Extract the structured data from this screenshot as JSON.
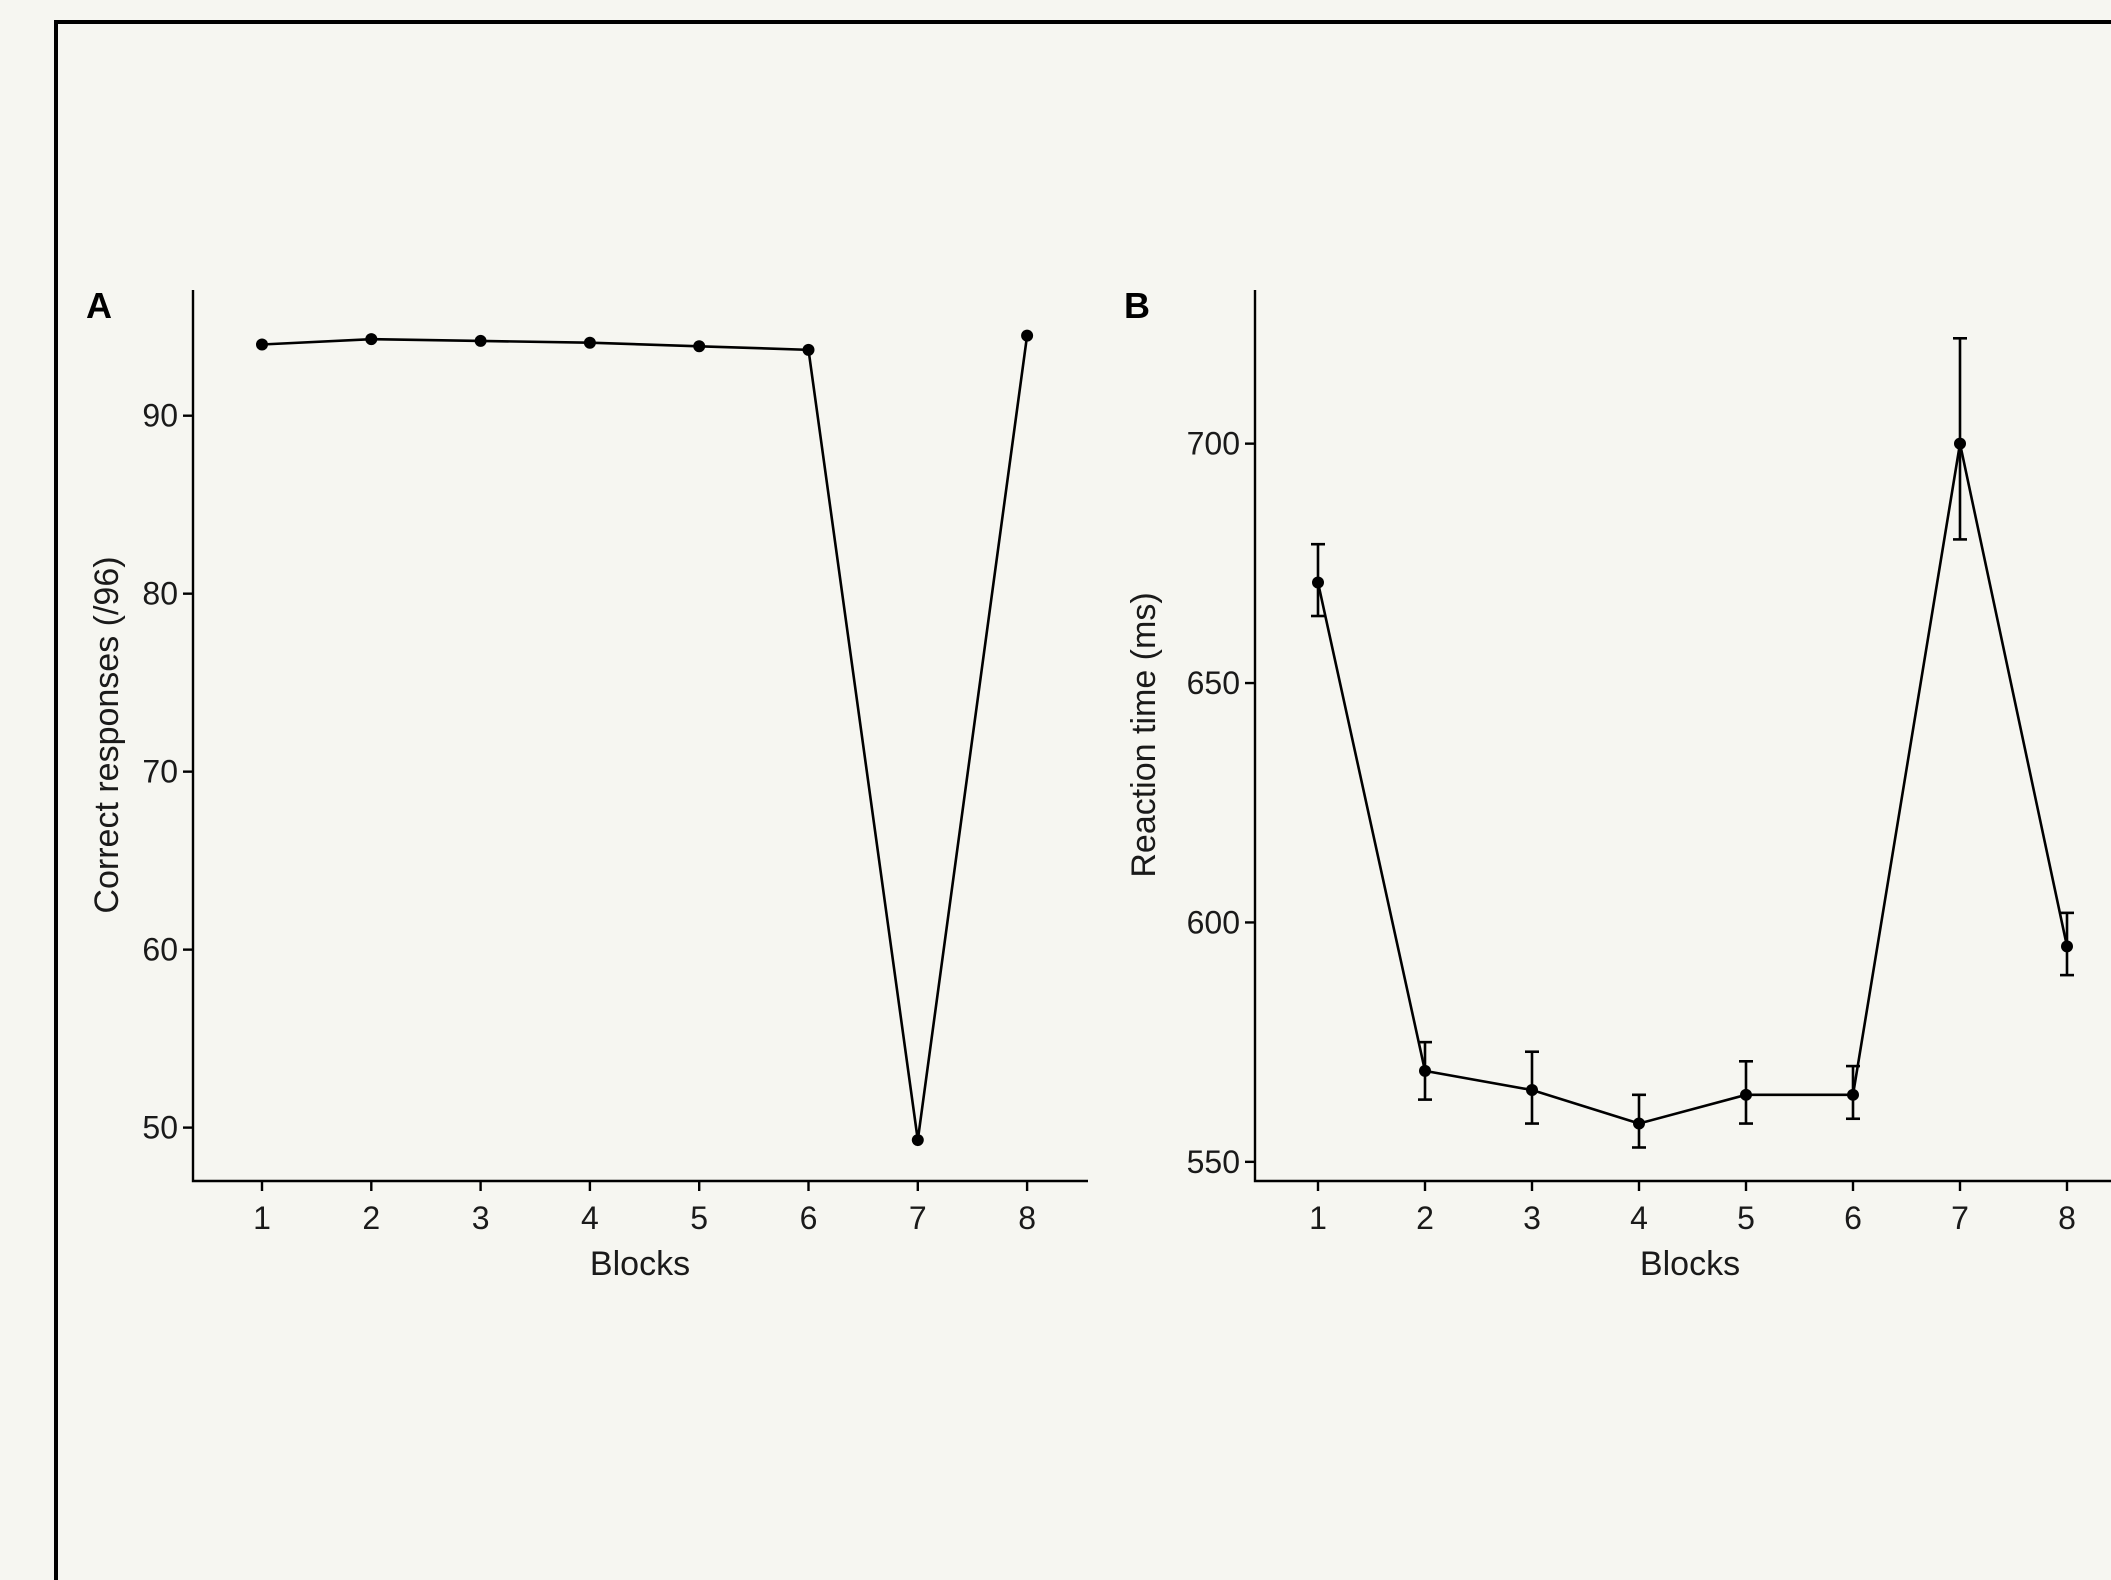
{
  "chart_data": [
    {
      "panel": "A",
      "type": "line",
      "xlabel": "Blocks",
      "ylabel": "Correct responses (/96)",
      "categories": [
        "1",
        "2",
        "3",
        "4",
        "5",
        "6",
        "7",
        "8"
      ],
      "values": [
        94.0,
        94.3,
        94.2,
        94.1,
        93.9,
        93.7,
        49.3,
        94.5
      ],
      "error_bars": false,
      "yticks": [
        "50",
        "60",
        "70",
        "80",
        "90"
      ],
      "ylim": [
        47,
        96.5
      ],
      "grid": false,
      "legend": "none"
    },
    {
      "panel": "B",
      "type": "line",
      "xlabel": "Blocks",
      "ylabel": "Reaction time (ms)",
      "categories": [
        "1",
        "2",
        "3",
        "4",
        "5",
        "6",
        "7",
        "8"
      ],
      "values": [
        671,
        569,
        565,
        558,
        564,
        564,
        700,
        595
      ],
      "error_low": [
        664,
        563,
        558,
        553,
        558,
        559,
        680,
        589
      ],
      "error_high": [
        679,
        575,
        573,
        564,
        571,
        570,
        722,
        602
      ],
      "error_bars": true,
      "yticks": [
        "550",
        "600",
        "650",
        "700"
      ],
      "ylim": [
        546,
        730
      ],
      "grid": false,
      "legend": "none"
    }
  ]
}
